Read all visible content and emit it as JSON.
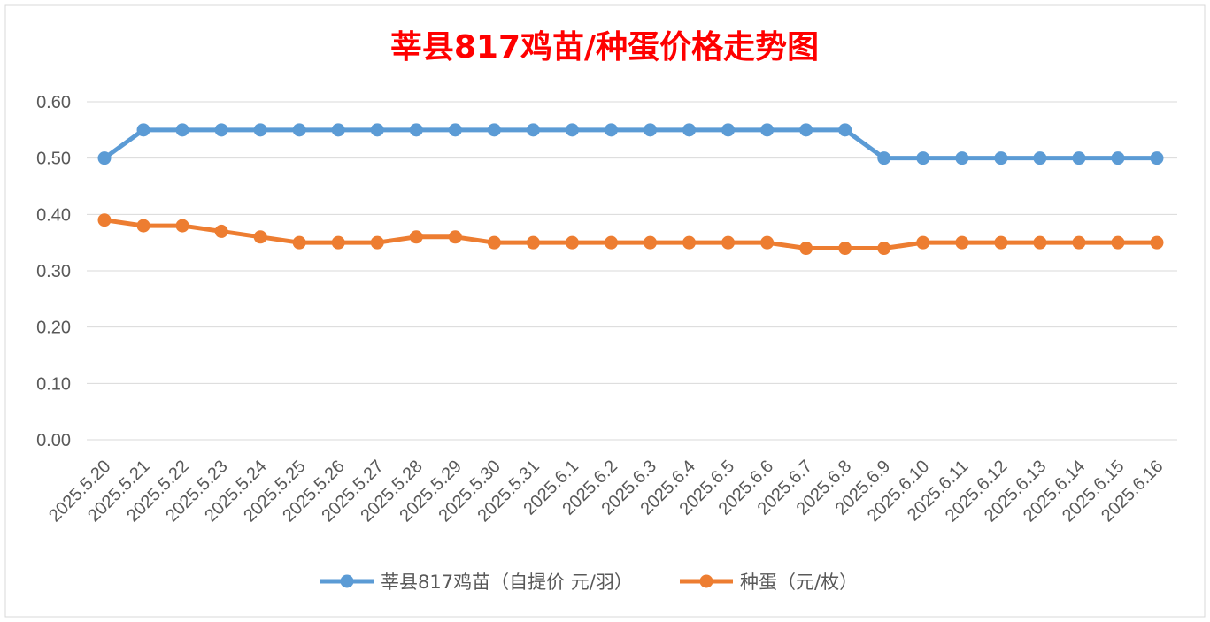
{
  "chart_data": {
    "type": "line",
    "title": "莘县817鸡苗/种蛋价格走势图",
    "xlabel": "",
    "ylabel": "",
    "ylim": [
      0,
      0.6
    ],
    "yticks": [
      "0.00",
      "0.10",
      "0.20",
      "0.30",
      "0.40",
      "0.50",
      "0.60"
    ],
    "grid": true,
    "legend_position": "bottom",
    "categories": [
      "2025.5.20",
      "2025.5.21",
      "2025.5.22",
      "2025.5.23",
      "2025.5.24",
      "2025.5.25",
      "2025.5.26",
      "2025.5.27",
      "2025.5.28",
      "2025.5.29",
      "2025.5.30",
      "2025.5.31",
      "2025.6.1",
      "2025.6.2",
      "2025.6.3",
      "2025.6.4",
      "2025.6.5",
      "2025.6.6",
      "2025.6.7",
      "2025.6.8",
      "2025.6.9",
      "2025.6.10",
      "2025.6.11",
      "2025.6.12",
      "2025.6.13",
      "2025.6.14",
      "2025.6.15",
      "2025.6.16"
    ],
    "series": [
      {
        "name": "莘县817鸡苗（自提价 元/羽）",
        "color": "#5B9BD5",
        "values": [
          0.5,
          0.55,
          0.55,
          0.55,
          0.55,
          0.55,
          0.55,
          0.55,
          0.55,
          0.55,
          0.55,
          0.55,
          0.55,
          0.55,
          0.55,
          0.55,
          0.55,
          0.55,
          0.55,
          0.55,
          0.5,
          0.5,
          0.5,
          0.5,
          0.5,
          0.5,
          0.5,
          0.5
        ]
      },
      {
        "name": "种蛋（元/枚）",
        "color": "#ED7D31",
        "values": [
          0.39,
          0.38,
          0.38,
          0.37,
          0.36,
          0.35,
          0.35,
          0.35,
          0.36,
          0.36,
          0.35,
          0.35,
          0.35,
          0.35,
          0.35,
          0.35,
          0.35,
          0.35,
          0.34,
          0.34,
          0.34,
          0.35,
          0.35,
          0.35,
          0.35,
          0.35,
          0.35,
          0.35
        ]
      }
    ],
    "title_color": "#FF0000"
  }
}
